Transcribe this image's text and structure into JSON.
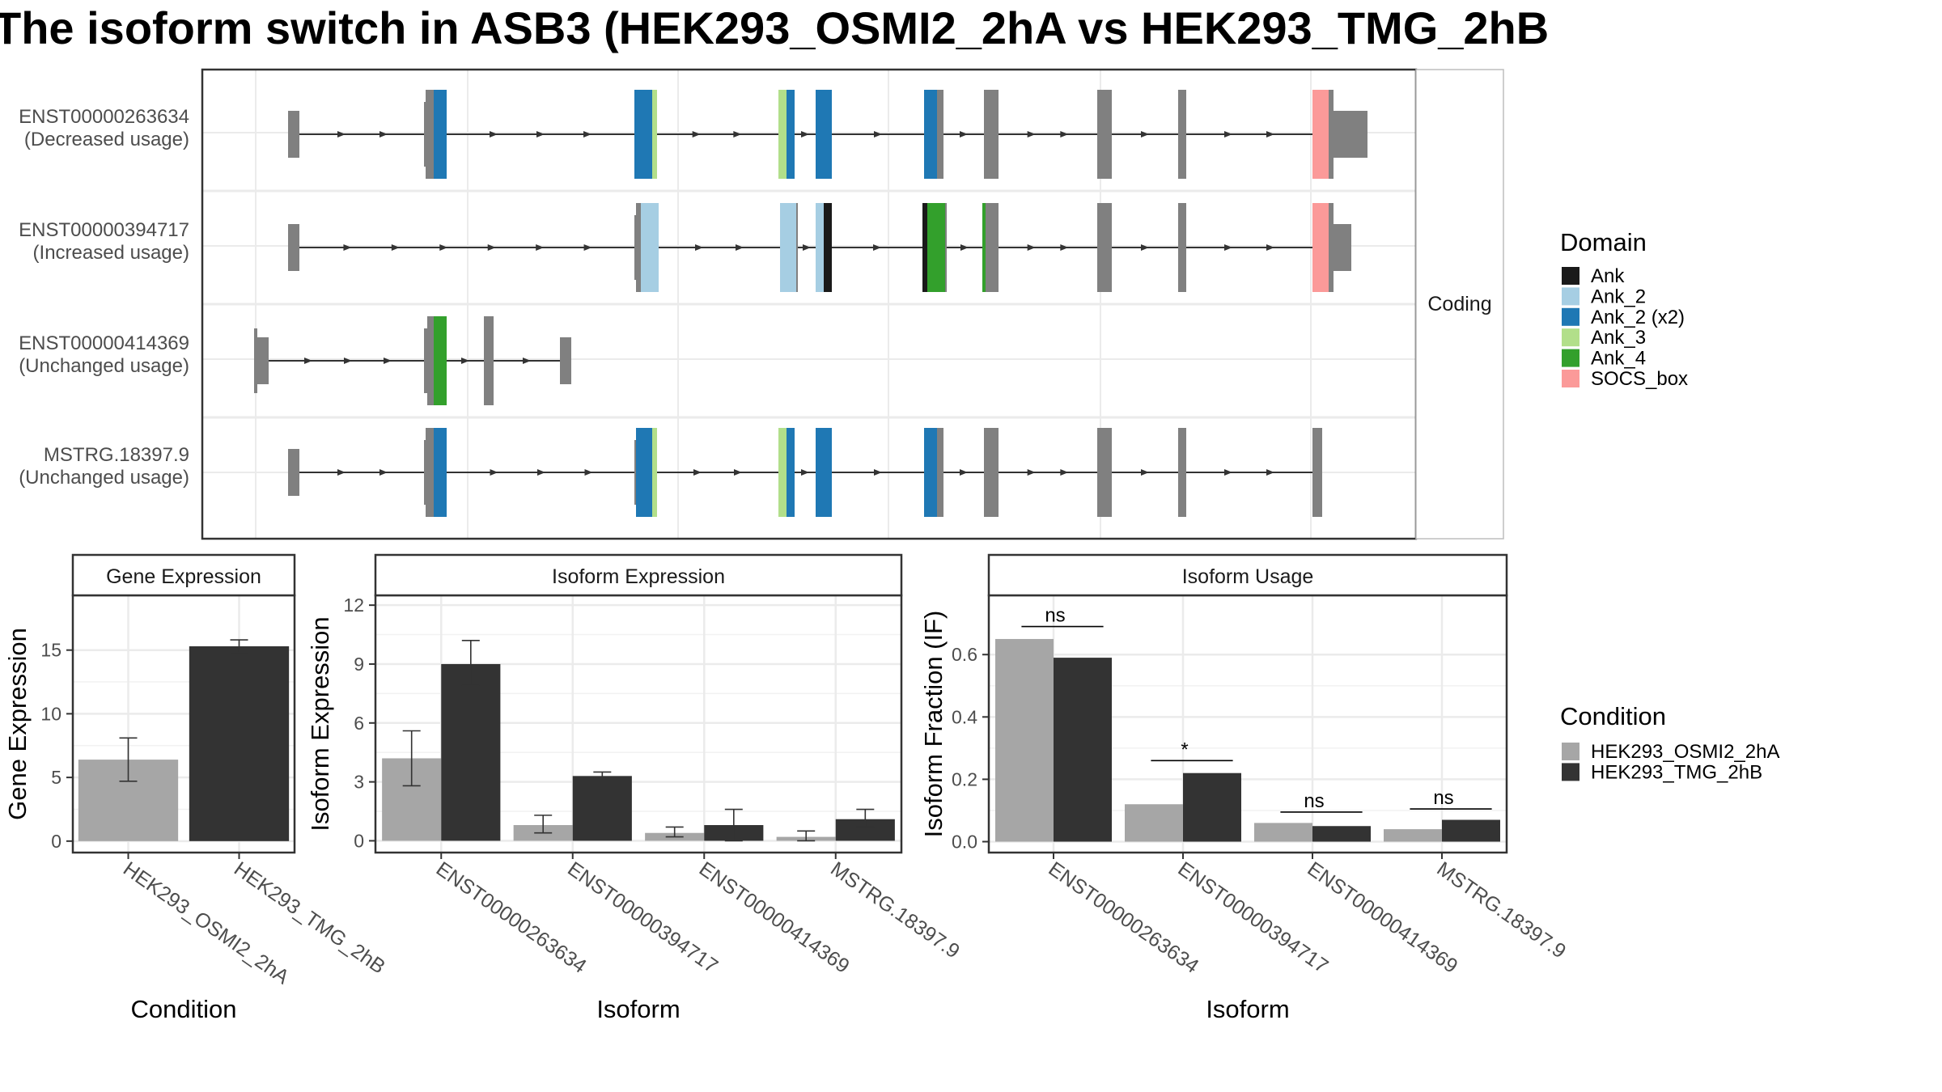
{
  "title": "The isoform switch in ASB3 (HEK293_OSMI2_2hA vs HEK293_TMG_2hB",
  "colors": {
    "intron": "#333333",
    "exon": "#808080",
    "panel_border": "#333333",
    "strip_fill": "#ffffff",
    "grid": "#ebebeb",
    "cond_a": "#a6a6a6",
    "cond_b": "#333333"
  },
  "structure": {
    "strip_label": "Coding",
    "isoforms": [
      {
        "id": "ENST00000263634",
        "usage": "(Decreased usage)"
      },
      {
        "id": "ENST00000394717",
        "usage": "(Increased usage)"
      },
      {
        "id": "ENST00000414369",
        "usage": "(Unchanged usage)"
      },
      {
        "id": "MSTRG.18397.9",
        "usage": "(Unchanged usage)"
      }
    ]
  },
  "domain_legend": {
    "title": "Domain",
    "items": [
      {
        "label": "Ank",
        "color": "#1a1a1a"
      },
      {
        "label": "Ank_2",
        "color": "#a6cee3"
      },
      {
        "label": "Ank_2 (x2)",
        "color": "#1f78b4"
      },
      {
        "label": "Ank_3",
        "color": "#b2df8a"
      },
      {
        "label": "Ank_4",
        "color": "#33a02c"
      },
      {
        "label": "SOCS_box",
        "color": "#fb9a99"
      }
    ]
  },
  "condition_legend": {
    "title": "Condition",
    "items": [
      {
        "label": "HEK293_OSMI2_2hA",
        "color": "#a6a6a6"
      },
      {
        "label": "HEK293_TMG_2hB",
        "color": "#333333"
      }
    ]
  },
  "chart_data": [
    {
      "type": "bar",
      "title": "Gene Expression",
      "xlabel": "Condition",
      "ylabel": "Gene Expression",
      "categories": [
        "HEK293_OSMI2_2hA",
        "HEK293_TMG_2hB"
      ],
      "values": [
        6.4,
        15.3
      ],
      "error_low": [
        4.7,
        14.8
      ],
      "error_high": [
        8.1,
        15.8
      ],
      "bar_colors": [
        "#a6a6a6",
        "#333333"
      ],
      "yticks": [
        0,
        5,
        10,
        15
      ],
      "ylim": [
        -0.9,
        19.3
      ],
      "grid": true
    },
    {
      "type": "bar",
      "title": "Isoform Expression",
      "xlabel": "Isoform",
      "ylabel": "Isoform Expression",
      "categories": [
        "ENST00000263634",
        "ENST00000394717",
        "ENST00000414369",
        "MSTRG.18397.9"
      ],
      "series": [
        {
          "name": "HEK293_OSMI2_2hA",
          "color": "#a6a6a6",
          "values": [
            4.2,
            0.8,
            0.4,
            0.2
          ],
          "error_low": [
            2.8,
            0.4,
            0.2,
            0.0
          ],
          "error_high": [
            5.6,
            1.3,
            0.7,
            0.5
          ]
        },
        {
          "name": "HEK293_TMG_2hB",
          "color": "#333333",
          "values": [
            9.0,
            3.3,
            0.8,
            1.1
          ],
          "error_low": [
            7.9,
            3.2,
            0.0,
            0.7
          ],
          "error_high": [
            10.2,
            3.5,
            1.6,
            1.6
          ]
        }
      ],
      "yticks": [
        0,
        3,
        6,
        9,
        12
      ],
      "ylim": [
        -0.6,
        12.5
      ],
      "grid": true
    },
    {
      "type": "bar",
      "title": "Isoform Usage",
      "xlabel": "Isoform",
      "ylabel": "Isoform Fraction (IF)",
      "categories": [
        "ENST00000263634",
        "ENST00000394717",
        "ENST00000414369",
        "MSTRG.18397.9"
      ],
      "series": [
        {
          "name": "HEK293_OSMI2_2hA",
          "color": "#a6a6a6",
          "values": [
            0.65,
            0.12,
            0.06,
            0.04
          ]
        },
        {
          "name": "HEK293_TMG_2hB",
          "color": "#333333",
          "values": [
            0.59,
            0.22,
            0.05,
            0.07
          ]
        }
      ],
      "significance": [
        "ns",
        "*",
        "ns",
        "ns"
      ],
      "sig_line_level": [
        0.69,
        0.26,
        0.095,
        0.105
      ],
      "yticks": [
        0.0,
        0.2,
        0.4,
        0.6
      ],
      "ylim": [
        -0.035,
        0.79
      ],
      "grid": true
    }
  ]
}
